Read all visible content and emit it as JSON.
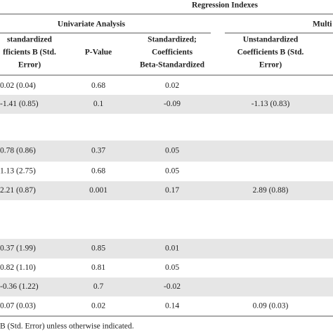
{
  "header": {
    "group_title": "Regression Indexes",
    "univariate": "Univariate Analysis",
    "multivariate": "Multi",
    "columns": [
      [
        "standardized",
        "fficients B (Std.",
        "Error)"
      ],
      [
        "P-Value"
      ],
      [
        "Standardized;",
        "Coefficients",
        "Beta-Standardized"
      ],
      [
        "Unstandardized",
        "Coefficients B (Std.",
        "Error)"
      ]
    ]
  },
  "table": {
    "rows": [
      [
        "0.02 (0.04)",
        "0.68",
        "0.02",
        null
      ],
      [
        "-1.41 (0.85)",
        "0.1",
        "-0.09",
        "-1.13 (0.83)"
      ],
      null,
      [
        "0.78 (0.86)",
        "0.37",
        "0.05",
        null
      ],
      [
        "1.13 (2.75)",
        "0.68",
        "0.05",
        null
      ],
      [
        "2.21 (0.87)",
        "0.001",
        "0.17",
        "2.89 (0.88)"
      ],
      null,
      [
        "0.37 (1.99)",
        "0.85",
        "0.01",
        null
      ],
      [
        "0.82 (1.10)",
        "0.81",
        "0.05",
        null
      ],
      [
        "-0.36 (1.22)",
        "0.7",
        "-0.02",
        null
      ],
      [
        "0.07 (0.03)",
        "0.02",
        "0.14",
        "0.09 (0.03)"
      ]
    ]
  },
  "footnote": "B (Std. Error) unless otherwise indicated."
}
